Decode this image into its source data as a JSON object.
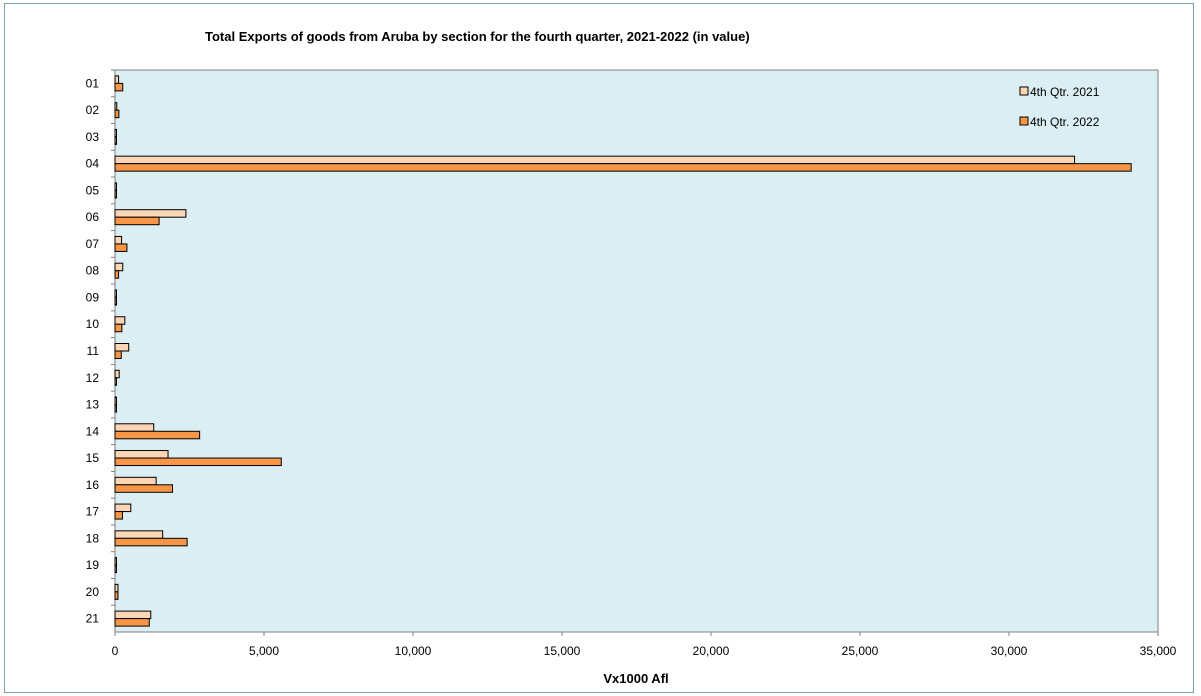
{
  "chart_data": {
    "type": "bar",
    "orientation": "horizontal",
    "title": "Total Exports of goods from Aruba by section for the fourth quarter, 2021-2022 (in value)",
    "xlabel": "Vx1000 Afl",
    "ylabel": "",
    "categories": [
      "01",
      "02",
      "03",
      "04",
      "05",
      "06",
      "07",
      "08",
      "09",
      "10",
      "11",
      "12",
      "13",
      "14",
      "15",
      "16",
      "17",
      "18",
      "19",
      "20",
      "21"
    ],
    "series": [
      {
        "name": "4th Qtr. 2021",
        "color": "#fcd5b5",
        "values": [
          120,
          60,
          30,
          32200,
          20,
          2380,
          220,
          260,
          20,
          330,
          460,
          140,
          20,
          1300,
          1780,
          1380,
          530,
          1600,
          20,
          100,
          1200
        ]
      },
      {
        "name": "4th Qtr. 2022",
        "color": "#f79646",
        "values": [
          260,
          130,
          50,
          34100,
          30,
          1480,
          400,
          120,
          30,
          230,
          210,
          40,
          20,
          2840,
          5580,
          1930,
          250,
          2420,
          40,
          100,
          1150
        ]
      }
    ],
    "xlim": [
      0,
      35000
    ],
    "xticks": [
      "0",
      "5,000",
      "10,000",
      "15,000",
      "20,000",
      "25,000",
      "30,000",
      "35,000"
    ],
    "xtick_values": [
      0,
      5000,
      10000,
      15000,
      20000,
      25000,
      30000,
      35000
    ],
    "plot_background": "#daeef3",
    "grid": false,
    "legend_position": "top-right"
  }
}
